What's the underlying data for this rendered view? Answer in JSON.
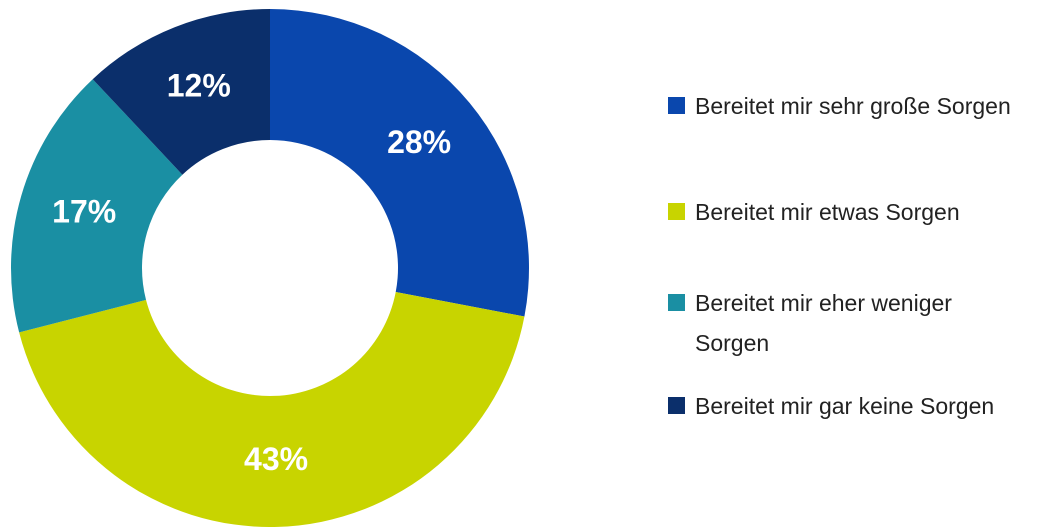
{
  "chart_data": {
    "type": "donut",
    "categories": [
      "Bereitet mir sehr große Sorgen",
      "Bereitet mir etwas Sorgen",
      "Bereitet mir eher weniger Sorgen",
      "Bereitet mir gar keine Sorgen"
    ],
    "values": [
      28,
      43,
      17,
      12
    ],
    "value_labels": [
      "28%",
      "43%",
      "17%",
      "12%"
    ],
    "colors": [
      "#0a47ad",
      "#c8d400",
      "#1a8fa3",
      "#0b2f6b"
    ],
    "legend": "right"
  }
}
